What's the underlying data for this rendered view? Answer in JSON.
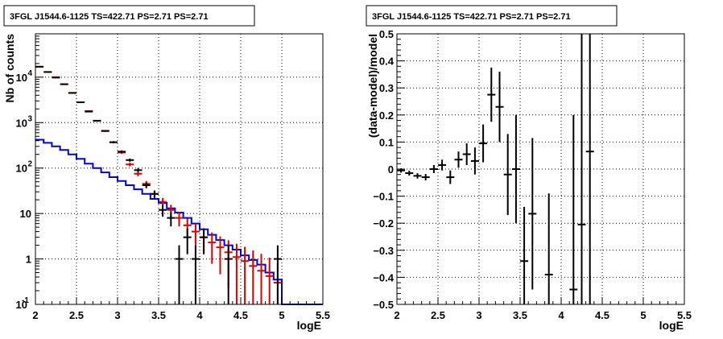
{
  "chart_data": [
    {
      "type": "histogram",
      "title": "3FGL J1544.6-1125 TS=422.71 PS=2.71 PS=2.71",
      "xlabel": "logE",
      "ylabel": "Nb of counts",
      "yscale": "log",
      "xlim": [
        2,
        5.5
      ],
      "ylim": [
        0.1,
        90000
      ],
      "grid": true,
      "x_ticks": [
        "2",
        "2.5",
        "3",
        "3.5",
        "4",
        "4.5",
        "5",
        "5.5"
      ],
      "y_ticks": [
        "10^-1",
        "1",
        "10",
        "10^2",
        "10^3",
        "10^4"
      ],
      "colors": {
        "data": "#000000",
        "model": "#dd0000",
        "source": "#0000dd"
      },
      "source_model_edges": [
        2.0,
        2.1,
        2.2,
        2.3,
        2.4,
        2.5,
        2.6,
        2.7,
        2.8,
        2.9,
        3.0,
        3.1,
        3.2,
        3.3,
        3.4,
        3.5,
        3.6,
        3.7,
        3.8,
        3.9,
        4.0,
        4.1,
        4.2,
        4.3,
        4.4,
        4.5,
        4.6,
        4.7,
        4.8,
        4.9,
        5.0,
        5.1,
        5.2,
        5.3,
        5.4,
        5.5
      ],
      "source_model_values": [
        420,
        360,
        300,
        250,
        200,
        160,
        125,
        100,
        80,
        63,
        52,
        42,
        34,
        27,
        21,
        17,
        13,
        10.5,
        8,
        6,
        4.5,
        3.4,
        2.6,
        2.0,
        1.6,
        1.2,
        0.95,
        0.75,
        0.5,
        0.35,
        0.1,
        0.1,
        0.1,
        0.1,
        0.1
      ],
      "total_model": [
        {
          "x": 2.05,
          "y": 17000,
          "lo": 16870,
          "hi": 17130
        },
        {
          "x": 2.15,
          "y": 13000,
          "lo": 12890,
          "hi": 13110
        },
        {
          "x": 2.25,
          "y": 10000,
          "lo": 9900,
          "hi": 10100
        },
        {
          "x": 2.35,
          "y": 7000,
          "lo": 6920,
          "hi": 7080
        },
        {
          "x": 2.45,
          "y": 4500,
          "lo": 4430,
          "hi": 4570
        },
        {
          "x": 2.55,
          "y": 2800,
          "lo": 2750,
          "hi": 2850
        },
        {
          "x": 2.65,
          "y": 1800,
          "lo": 1760,
          "hi": 1840
        },
        {
          "x": 2.75,
          "y": 1100,
          "lo": 1070,
          "hi": 1130
        },
        {
          "x": 2.85,
          "y": 650,
          "lo": 625,
          "hi": 675
        },
        {
          "x": 2.95,
          "y": 370,
          "lo": 350,
          "hi": 390
        },
        {
          "x": 3.05,
          "y": 220,
          "lo": 205,
          "hi": 235
        },
        {
          "x": 3.15,
          "y": 120,
          "lo": 109,
          "hi": 131
        },
        {
          "x": 3.25,
          "y": 75,
          "lo": 66,
          "hi": 84
        },
        {
          "x": 3.35,
          "y": 45,
          "lo": 38,
          "hi": 52
        },
        {
          "x": 3.45,
          "y": 27,
          "lo": 22,
          "hi": 32
        },
        {
          "x": 3.55,
          "y": 18,
          "lo": 14,
          "hi": 22
        },
        {
          "x": 3.65,
          "y": 12,
          "lo": 8.5,
          "hi": 15.5
        },
        {
          "x": 3.75,
          "y": 8,
          "lo": 5.2,
          "hi": 10.8
        },
        {
          "x": 3.85,
          "y": 5.5,
          "lo": 3.2,
          "hi": 7.8
        },
        {
          "x": 3.95,
          "y": 4,
          "lo": 2.0,
          "hi": 6.0
        },
        {
          "x": 4.05,
          "y": 3,
          "lo": 1.27,
          "hi": 4.73
        },
        {
          "x": 4.15,
          "y": 2.3,
          "lo": 0.78,
          "hi": 3.82
        },
        {
          "x": 4.25,
          "y": 1.8,
          "lo": 0.46,
          "hi": 3.14
        },
        {
          "x": 4.35,
          "y": 1.4,
          "lo": 0.22,
          "hi": 2.58
        },
        {
          "x": 4.45,
          "y": 1.1,
          "lo": 0.1,
          "hi": 2.15
        },
        {
          "x": 4.55,
          "y": 0.9,
          "lo": 0.1,
          "hi": 1.85
        },
        {
          "x": 4.65,
          "y": 0.7,
          "lo": 0.1,
          "hi": 1.54
        },
        {
          "x": 4.75,
          "y": 0.55,
          "lo": 0.1,
          "hi": 1.29
        },
        {
          "x": 4.85,
          "y": 0.42,
          "lo": 0.1,
          "hi": 1.07
        },
        {
          "x": 4.95,
          "y": 0.3,
          "lo": 0.1,
          "hi": 0.85
        }
      ],
      "counts": [
        {
          "x": 2.05,
          "y": 17000,
          "lo": 16870,
          "hi": 17130
        },
        {
          "x": 2.15,
          "y": 13000,
          "lo": 12890,
          "hi": 13110
        },
        {
          "x": 2.25,
          "y": 9800,
          "lo": 9700,
          "hi": 9900
        },
        {
          "x": 2.35,
          "y": 7000,
          "lo": 6920,
          "hi": 7080
        },
        {
          "x": 2.45,
          "y": 4500,
          "lo": 4430,
          "hi": 4570
        },
        {
          "x": 2.55,
          "y": 2800,
          "lo": 2750,
          "hi": 2850
        },
        {
          "x": 2.65,
          "y": 1750,
          "lo": 1710,
          "hi": 1790
        },
        {
          "x": 2.75,
          "y": 1100,
          "lo": 1070,
          "hi": 1130
        },
        {
          "x": 2.85,
          "y": 660,
          "lo": 634,
          "hi": 686
        },
        {
          "x": 2.95,
          "y": 370,
          "lo": 350,
          "hi": 390
        },
        {
          "x": 3.05,
          "y": 230,
          "lo": 215,
          "hi": 245
        },
        {
          "x": 3.15,
          "y": 150,
          "lo": 138,
          "hi": 162
        },
        {
          "x": 3.25,
          "y": 90,
          "lo": 80,
          "hi": 100
        },
        {
          "x": 3.35,
          "y": 42,
          "lo": 36,
          "hi": 48
        },
        {
          "x": 3.45,
          "y": 27,
          "lo": 22,
          "hi": 32
        },
        {
          "x": 3.55,
          "y": 12,
          "lo": 8.5,
          "hi": 15.5
        },
        {
          "x": 3.65,
          "y": 8,
          "lo": 5.2,
          "hi": 10.8
        },
        {
          "x": 3.75,
          "y": 1,
          "lo": 0.1,
          "hi": 2.0
        },
        {
          "x": 3.85,
          "y": 3,
          "lo": 1.27,
          "hi": 4.73
        },
        {
          "x": 3.95,
          "y": 1,
          "lo": 0.1,
          "hi": 2.0
        },
        {
          "x": 4.05,
          "y": 3,
          "lo": 1.27,
          "hi": 4.73
        },
        {
          "x": 4.35,
          "y": 1,
          "lo": 0.1,
          "hi": 2.0
        },
        {
          "x": 4.95,
          "y": 1,
          "lo": 0.1,
          "hi": 2.0
        }
      ]
    },
    {
      "type": "scatter",
      "title": "3FGL J1544.6-1125 TS=422.71 PS=2.71 PS=2.71",
      "xlabel": "logE",
      "ylabel": "(data-model)/model",
      "xlim": [
        2,
        5.5
      ],
      "ylim": [
        -0.5,
        0.5
      ],
      "grid": true,
      "x_ticks": [
        "2",
        "2.5",
        "3",
        "3.5",
        "4",
        "4.5",
        "5",
        "5.5"
      ],
      "y_ticks": [
        "-0.5",
        "-0.4",
        "-0.3",
        "-0.2",
        "-0.1",
        "0",
        "0.1",
        "0.2",
        "0.3",
        "0.4",
        "0.5"
      ],
      "points": [
        {
          "x": 2.05,
          "y": -0.005,
          "err": 0.008
        },
        {
          "x": 2.15,
          "y": -0.015,
          "err": 0.009
        },
        {
          "x": 2.25,
          "y": -0.025,
          "err": 0.01
        },
        {
          "x": 2.35,
          "y": -0.03,
          "err": 0.012
        },
        {
          "x": 2.45,
          "y": 0.0,
          "err": 0.015
        },
        {
          "x": 2.55,
          "y": 0.015,
          "err": 0.02
        },
        {
          "x": 2.65,
          "y": -0.03,
          "err": 0.025
        },
        {
          "x": 2.75,
          "y": 0.035,
          "err": 0.03
        },
        {
          "x": 2.85,
          "y": 0.055,
          "err": 0.04
        },
        {
          "x": 2.95,
          "y": 0.03,
          "err": 0.05
        },
        {
          "x": 3.05,
          "y": 0.095,
          "err": 0.07
        },
        {
          "x": 3.15,
          "y": 0.275,
          "err": 0.1
        },
        {
          "x": 3.25,
          "y": 0.23,
          "err": 0.13
        },
        {
          "x": 3.35,
          "y": -0.02,
          "err": 0.15
        },
        {
          "x": 3.45,
          "y": 0.0,
          "err": 0.2
        },
        {
          "x": 3.55,
          "y": -0.34,
          "err": 0.2
        },
        {
          "x": 3.65,
          "y": -0.165,
          "err": 0.28
        },
        {
          "x": 3.85,
          "y": -0.39,
          "err": 0.3
        },
        {
          "x": 4.15,
          "y": -0.445,
          "err": 0.645
        },
        {
          "x": 4.25,
          "y": -0.205,
          "err": 1.0
        },
        {
          "x": 4.35,
          "y": 0.065,
          "err": 0.9
        }
      ]
    }
  ]
}
